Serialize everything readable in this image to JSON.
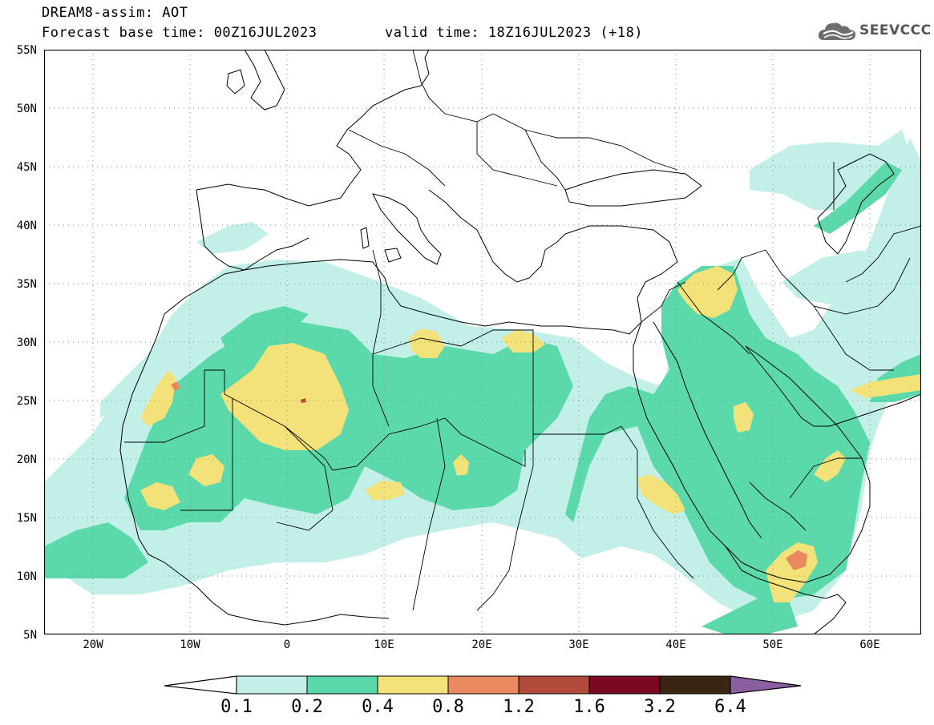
{
  "header": {
    "title": "DREAM8-assim: AOT",
    "base_time": "Forecast base time: 00Z16JUL2023",
    "valid_time": "valid time: 18Z16JUL2023 (+18)"
  },
  "logo": {
    "text": "SEEVCCC",
    "icon": "cloud-icon"
  },
  "map": {
    "lat_labels": [
      "55N",
      "50N",
      "45N",
      "40N",
      "35N",
      "30N",
      "25N",
      "20N",
      "15N",
      "10N",
      "5N"
    ],
    "lon_labels": [
      "20W",
      "10W",
      "0",
      "10E",
      "20E",
      "30E",
      "40E",
      "50E",
      "60E"
    ],
    "colors": {
      "level1": "#c3efe9",
      "level2": "#5cd9aa",
      "level3": "#f3e27a",
      "level4": "#e9895f",
      "level5": "#b24a3c",
      "border": "#000000"
    }
  },
  "colorbar": {
    "labels": [
      "0.1",
      "0.2",
      "0.4",
      "0.8",
      "1.2",
      "1.6",
      "3.2",
      "6.4"
    ],
    "colors": [
      "#ffffff",
      "#c3efe9",
      "#5cd9aa",
      "#f3e27a",
      "#e9895f",
      "#b24a3c",
      "#7a0a22",
      "#3a2512",
      "#8a5ea0"
    ]
  }
}
